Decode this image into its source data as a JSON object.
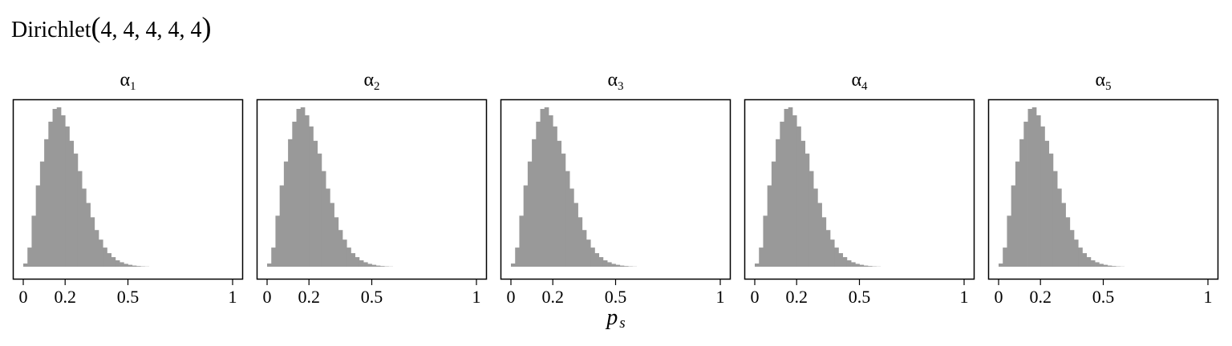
{
  "chart_data": {
    "type": "bar",
    "title": {
      "name": "Dirichlet",
      "params": "4, 4, 4, 4, 4"
    },
    "xlabel": {
      "base": "p",
      "sub": "s"
    },
    "xlim": [
      0,
      1
    ],
    "x_ticks": [
      {
        "value": 0,
        "label": "0"
      },
      {
        "value": 0.2,
        "label": "0.2"
      },
      {
        "value": 0.5,
        "label": "0.5"
      },
      {
        "value": 1,
        "label": "1"
      }
    ],
    "y_axis_visible": false,
    "bar_color": "#999999",
    "frame_color": "#000000",
    "bin_width": 0.02,
    "bin_start": 0,
    "panels": [
      {
        "label_base": "α",
        "label_sub": "1",
        "values": [
          0.02,
          0.12,
          0.32,
          0.51,
          0.66,
          0.8,
          0.91,
          0.99,
          1.0,
          0.95,
          0.88,
          0.79,
          0.71,
          0.6,
          0.49,
          0.4,
          0.31,
          0.23,
          0.17,
          0.12,
          0.085,
          0.06,
          0.04,
          0.028,
          0.018,
          0.012,
          0.007,
          0.004,
          0.002,
          0.001
        ]
      },
      {
        "label_base": "α",
        "label_sub": "2",
        "values": [
          0.02,
          0.12,
          0.32,
          0.51,
          0.66,
          0.8,
          0.91,
          0.99,
          1.0,
          0.95,
          0.88,
          0.79,
          0.71,
          0.6,
          0.49,
          0.4,
          0.31,
          0.23,
          0.17,
          0.12,
          0.085,
          0.06,
          0.04,
          0.028,
          0.018,
          0.012,
          0.007,
          0.004,
          0.002,
          0.001
        ]
      },
      {
        "label_base": "α",
        "label_sub": "3",
        "values": [
          0.02,
          0.12,
          0.32,
          0.51,
          0.66,
          0.8,
          0.91,
          0.99,
          1.0,
          0.95,
          0.88,
          0.79,
          0.71,
          0.6,
          0.49,
          0.4,
          0.31,
          0.23,
          0.17,
          0.12,
          0.085,
          0.06,
          0.04,
          0.028,
          0.018,
          0.012,
          0.007,
          0.004,
          0.002,
          0.001
        ]
      },
      {
        "label_base": "α",
        "label_sub": "4",
        "values": [
          0.02,
          0.12,
          0.32,
          0.51,
          0.66,
          0.8,
          0.91,
          0.99,
          1.0,
          0.95,
          0.88,
          0.79,
          0.71,
          0.6,
          0.49,
          0.4,
          0.31,
          0.23,
          0.17,
          0.12,
          0.085,
          0.06,
          0.04,
          0.028,
          0.018,
          0.012,
          0.007,
          0.004,
          0.002,
          0.001
        ]
      },
      {
        "label_base": "α",
        "label_sub": "5",
        "values": [
          0.02,
          0.12,
          0.32,
          0.51,
          0.66,
          0.8,
          0.91,
          0.99,
          1.0,
          0.95,
          0.88,
          0.79,
          0.71,
          0.6,
          0.49,
          0.4,
          0.31,
          0.23,
          0.17,
          0.12,
          0.085,
          0.06,
          0.04,
          0.028,
          0.018,
          0.012,
          0.007,
          0.004,
          0.002,
          0.001
        ]
      }
    ]
  }
}
